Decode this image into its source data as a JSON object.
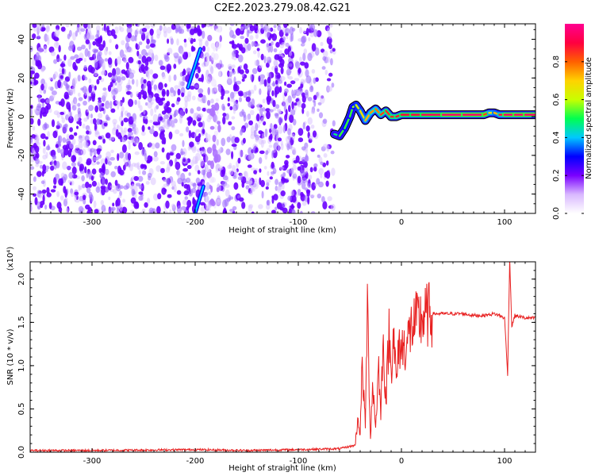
{
  "title": "C2E2.2023.279.08.42.G21",
  "chart_data": [
    {
      "type": "heatmap",
      "xlabel": "Height of straight line (km)",
      "ylabel": "Frequency (Hz)",
      "xlim": [
        -360,
        130
      ],
      "ylim": [
        -50,
        48
      ],
      "x_ticks": [
        -300,
        -200,
        -100,
        0,
        100
      ],
      "y_ticks": [
        -40,
        -20,
        0,
        20,
        40
      ],
      "colorbar": {
        "label": "Normalized spectral amplitude",
        "range": [
          0,
          1
        ],
        "ticks": [
          "0.0",
          "0.2",
          "0.4",
          "0.6",
          "0.8"
        ],
        "colormap": [
          "#ffffff",
          "#d9b8ff",
          "#7a00ff",
          "#0000ff",
          "#00c8ff",
          "#00ff50",
          "#c8ff00",
          "#ffd200",
          "#ff6000",
          "#ff0040",
          "#ff0090"
        ]
      },
      "noise_region": {
        "x_range": [
          -360,
          -65
        ],
        "amplitude": [
          0.0,
          0.3
        ]
      },
      "signal_track": {
        "x": [
          -65,
          -60,
          -55,
          -50,
          -47,
          -44,
          -40,
          -35,
          -30,
          -25,
          -20,
          -15,
          -10,
          -5,
          0,
          10,
          20,
          40,
          60,
          80,
          85,
          90,
          95,
          100,
          110,
          120,
          130
        ],
        "freq": [
          -9,
          -10,
          -6,
          0,
          5,
          6,
          3,
          -2,
          2,
          4,
          1,
          3,
          0,
          0,
          1,
          1,
          1,
          1,
          1,
          1,
          2,
          2,
          1,
          1,
          1,
          1,
          1
        ],
        "amplitude": [
          0.45,
          0.5,
          0.55,
          0.5,
          0.55,
          0.6,
          0.65,
          0.7,
          0.75,
          0.75,
          0.8,
          0.85,
          0.85,
          0.85,
          0.9,
          0.9,
          0.92,
          0.95,
          0.95,
          0.95,
          0.7,
          0.65,
          0.8,
          0.95,
          0.95,
          0.95,
          0.95
        ]
      },
      "streaks": [
        {
          "x": [
            -207,
            -195
          ],
          "freq": [
            15,
            35
          ]
        },
        {
          "x": [
            -200,
            -192
          ],
          "freq": [
            -50,
            -36
          ]
        }
      ]
    },
    {
      "type": "line",
      "xlabel": "Height of straight line (km)",
      "ylabel": "SNR (10 * v/v)",
      "multiplier_label": "(x10⁴)",
      "xlim": [
        -360,
        130
      ],
      "ylim": [
        0,
        2.2
      ],
      "x_ticks": [
        -300,
        -200,
        -100,
        0,
        100
      ],
      "y_ticks": [
        "0.0",
        "0.5",
        "1.0",
        "1.5",
        "2.0"
      ],
      "line_color": "#e82020",
      "series": [
        {
          "x": [
            -360,
            -300,
            -250,
            -200,
            -150,
            -100,
            -60,
            -45,
            -42,
            -40,
            -38,
            -35,
            -33,
            -30,
            -28,
            -25,
            -22,
            -20,
            -18,
            -15,
            -12,
            -10,
            -8,
            -5,
            -2,
            0,
            5,
            10,
            20,
            30,
            40,
            50,
            60,
            70,
            80,
            90,
            95,
            100,
            103,
            105,
            107,
            110,
            120,
            130
          ],
          "y": [
            0.02,
            0.02,
            0.025,
            0.03,
            0.02,
            0.03,
            0.04,
            0.08,
            0.4,
            0.2,
            1.0,
            0.3,
            1.7,
            0.15,
            0.8,
            0.3,
            1.0,
            0.4,
            1.3,
            0.6,
            1.4,
            0.9,
            1.5,
            0.8,
            1.25,
            1.2,
            1.25,
            1.45,
            1.55,
            1.6,
            1.6,
            1.6,
            1.6,
            1.58,
            1.58,
            1.6,
            1.58,
            1.55,
            0.9,
            2.25,
            1.45,
            1.58,
            1.55,
            1.55
          ]
        }
      ]
    }
  ]
}
